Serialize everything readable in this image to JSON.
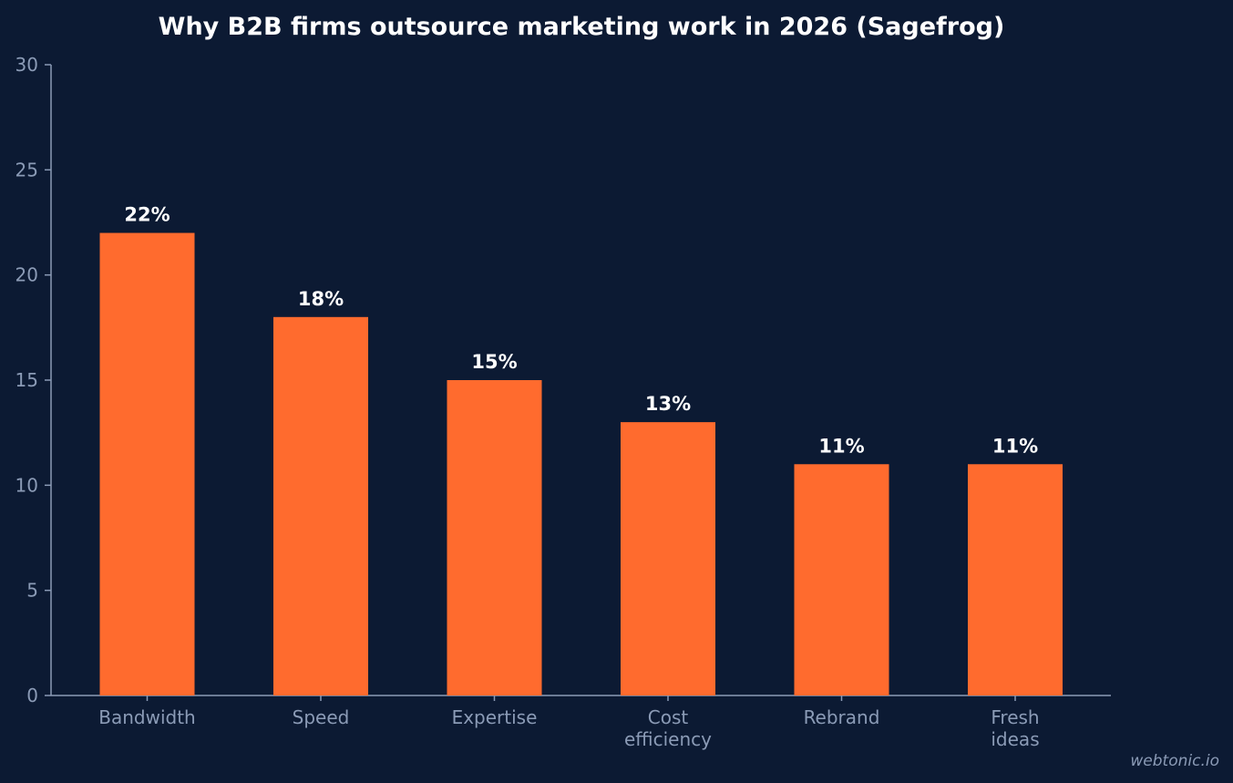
{
  "chart_data": {
    "type": "bar",
    "title": "Why B2B firms outsource marketing work in 2026 (Sagefrog)",
    "categories": [
      "Bandwidth",
      "Speed",
      "Expertise",
      "Cost efficiency",
      "Rebrand",
      "Fresh ideas"
    ],
    "category_lines": [
      [
        "Bandwidth"
      ],
      [
        "Speed"
      ],
      [
        "Expertise"
      ],
      [
        "Cost",
        "efficiency"
      ],
      [
        "Rebrand"
      ],
      [
        "Fresh",
        "ideas"
      ]
    ],
    "values": [
      22,
      18,
      15,
      13,
      11,
      11
    ],
    "data_labels": [
      "22%",
      "18%",
      "15%",
      "13%",
      "11%",
      "11%"
    ],
    "xlabel": "",
    "ylabel": "",
    "ylim": [
      0,
      30
    ],
    "yticks": [
      0,
      5,
      10,
      15,
      20,
      25,
      30
    ],
    "grid": false,
    "legend": "none",
    "colors": {
      "background": "#0c1a33",
      "bar": "#ff6b2e",
      "axis": "#8b9bb6",
      "text": "#ffffff"
    }
  },
  "watermark": "webtonic.io"
}
